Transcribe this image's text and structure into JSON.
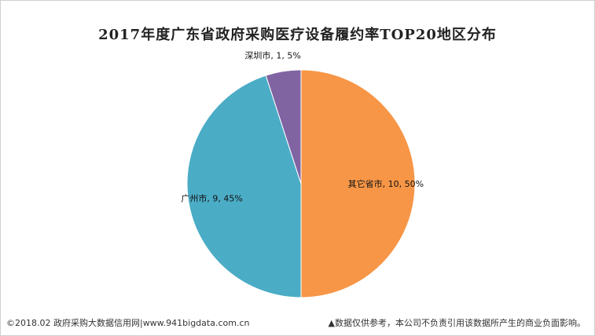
{
  "chart_data": {
    "type": "pie",
    "title": "2017年度广东省政府采购医疗设备履约率TOP20地区分布",
    "slices": [
      {
        "name": "其它省市",
        "value": 10,
        "percent": "50%",
        "color": "#F79646"
      },
      {
        "name": "广州市",
        "value": 9,
        "percent": "45%",
        "color": "#4BACC6"
      },
      {
        "name": "深圳市",
        "value": 1,
        "percent": "5%",
        "color": "#8064A2"
      }
    ],
    "start_angle_deg": 0,
    "direction": "clockwise",
    "label_format": "name, value, percent"
  },
  "footer": {
    "left": "©2018.02 政府采购大数据信用网|www.941bigdata.com.cn",
    "right": "▲数据仅供参考，本公司不负责引用该数据所产生的商业负面影响。"
  }
}
